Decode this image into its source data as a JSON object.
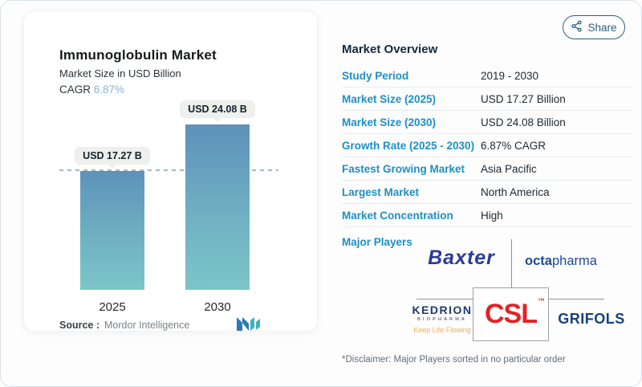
{
  "page": {
    "share_label": "Share",
    "disclaimer": "*Disclaimer: Major Players sorted in no particular order"
  },
  "chart_card": {
    "title": "Immunoglobulin Market",
    "subtitle": "Market Size in USD Billion",
    "cagr_label": "CAGR ",
    "cagr_value": "6.87%",
    "source_label": "Source :",
    "source_name": "Mordor Intelligence"
  },
  "chart_data": {
    "type": "bar",
    "title": "Immunoglobulin Market",
    "ylabel": "Market Size in USD Billion",
    "categories": [
      "2025",
      "2030"
    ],
    "values": [
      17.27,
      24.08
    ],
    "bar_labels": [
      "USD 17.27 B",
      "USD 24.08 B"
    ],
    "cagr": "6.87%",
    "reference_line": 17.27,
    "grid": false,
    "legend": false,
    "ylim": [
      0,
      24.08
    ],
    "colors": {
      "bar_gradient_top": "#5e92ba",
      "bar_gradient_bottom": "#7cc5c8",
      "reference_dash": "#a3b7c1"
    }
  },
  "overview": {
    "heading": "Market Overview",
    "rows": [
      {
        "label": "Study Period",
        "value": "2019 - 2030"
      },
      {
        "label": "Market Size (2025)",
        "value": "USD 17.27 Billion"
      },
      {
        "label": "Market Size (2030)",
        "value": "USD 24.08 Billion"
      },
      {
        "label": "Growth Rate (2025 - 2030)",
        "value": "6.87% CAGR"
      },
      {
        "label": "Fastest Growing Market",
        "value": "Asia Pacific"
      },
      {
        "label": "Largest Market",
        "value": "North America"
      },
      {
        "label": "Market Concentration",
        "value": "High"
      }
    ],
    "major_players_label": "Major Players"
  },
  "players": {
    "baxter": "Baxter",
    "octapharma_bold": "octa",
    "octapharma_light": "pharma",
    "kedrion_name": "KEDRION",
    "kedrion_sub": "BIOPHARMA",
    "kedrion_tagline": "Keep Life Flowing",
    "csl": "CSL",
    "csl_tm": "™",
    "grifols": "GRIFOLS"
  },
  "colors": {
    "accent_blue": "#1d8fc6",
    "cagr_blue": "#85b6d8",
    "share_teal": "#2d5f7f",
    "baxter_navy": "#2b3a94",
    "octapharma_blue": "#1e4b9a",
    "kedrion_navy": "#1d3a6e",
    "kedrion_orange": "#f0b050",
    "csl_red": "#e32226",
    "grifols_navy": "#16417f"
  }
}
